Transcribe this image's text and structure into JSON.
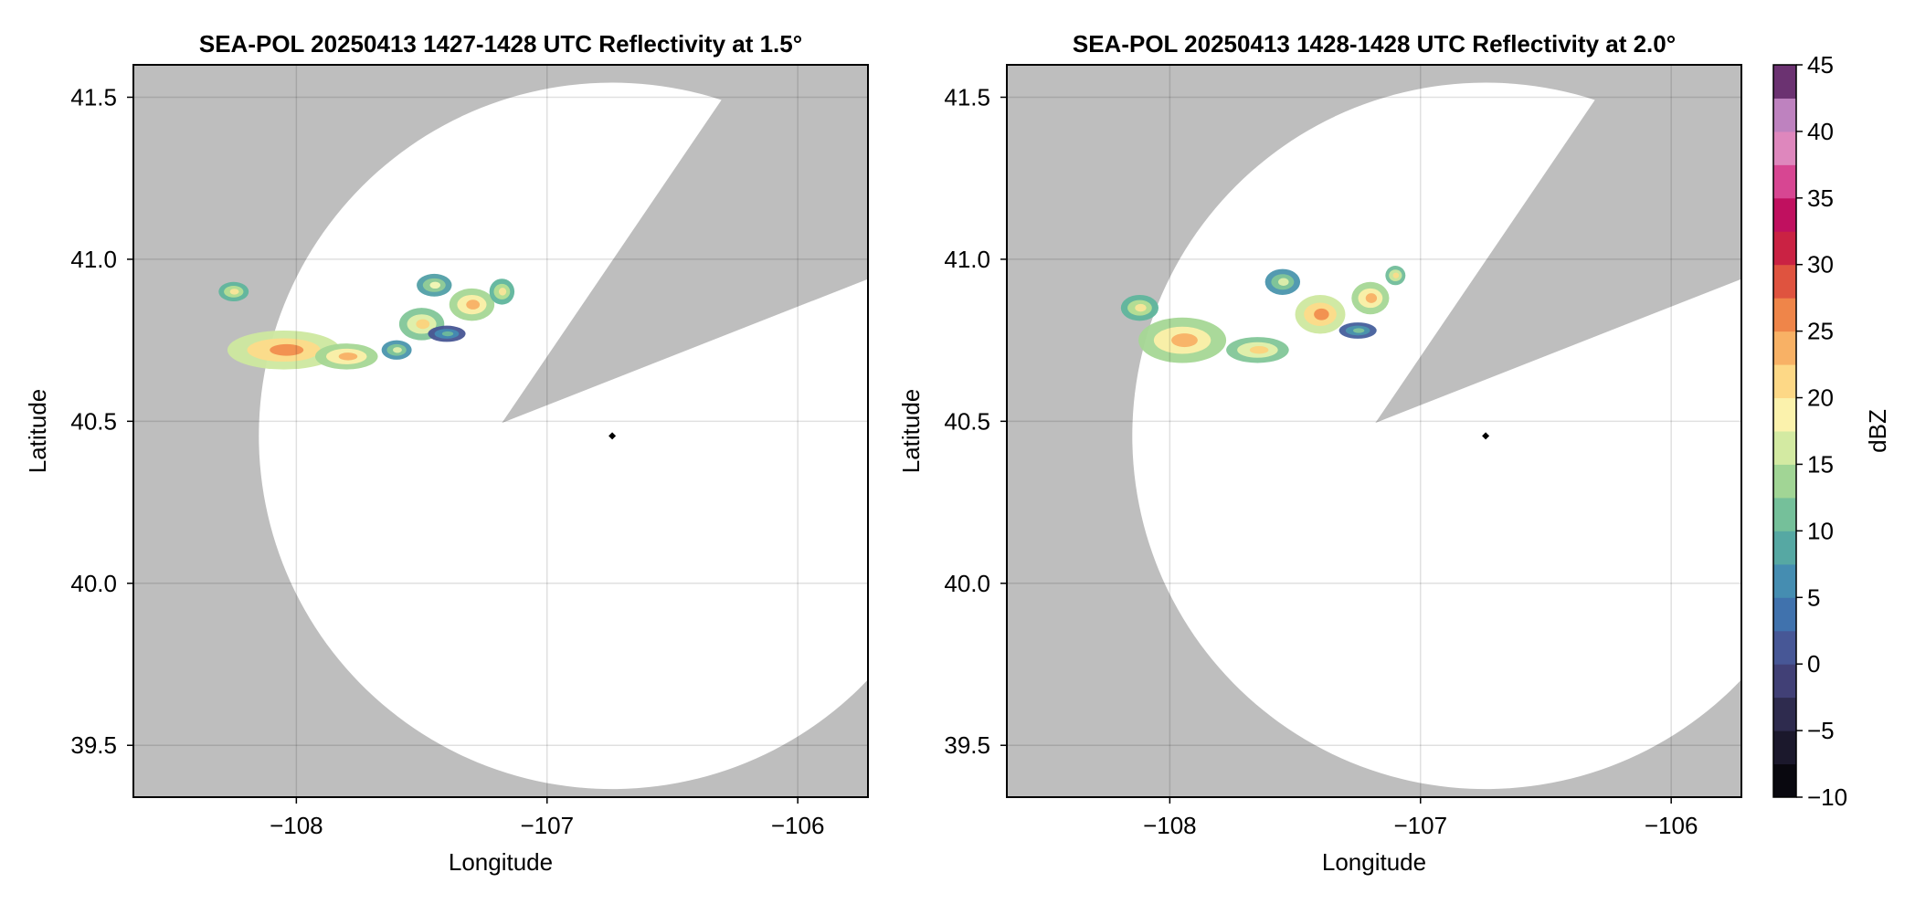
{
  "chart_data": [
    {
      "type": "heatmap",
      "panel": "left",
      "title": "SEA-POL 20250413 1427-1428 UTC Reflectivity at 1.5°",
      "xlabel": "Longitude",
      "ylabel": "Latitude",
      "xlim": [
        -108.65,
        -105.72
      ],
      "ylim": [
        39.34,
        41.6
      ],
      "xticks": [
        -108,
        -107,
        -106
      ],
      "xtick_labels": [
        "−108",
        "−107",
        "−106"
      ],
      "yticks": [
        39.5,
        40.0,
        40.5,
        41.0,
        41.5
      ],
      "ytick_labels": [
        "39.5",
        "40.0",
        "40.5",
        "41.0",
        "41.5"
      ],
      "grid": true,
      "background_color": "#bebebe",
      "radar_site": {
        "lon": -106.74,
        "lat": 40.455
      },
      "coverage": {
        "center_lon": -106.74,
        "center_lat": 40.455,
        "radius_deg_lat": 1.09,
        "blocked_sector_deg": [
          18,
          60
        ]
      },
      "echo_regions": [
        {
          "lon": -108.05,
          "lat": 40.72,
          "w": 0.45,
          "h": 0.12,
          "dbz": 22
        },
        {
          "lon": -107.8,
          "lat": 40.7,
          "w": 0.25,
          "h": 0.08,
          "dbz": 20
        },
        {
          "lon": -108.25,
          "lat": 40.9,
          "w": 0.12,
          "h": 0.06,
          "dbz": 16
        },
        {
          "lon": -107.6,
          "lat": 40.72,
          "w": 0.12,
          "h": 0.06,
          "dbz": 13
        },
        {
          "lon": -107.5,
          "lat": 40.8,
          "w": 0.18,
          "h": 0.1,
          "dbz": 18
        },
        {
          "lon": -107.45,
          "lat": 40.92,
          "w": 0.14,
          "h": 0.07,
          "dbz": 14
        },
        {
          "lon": -107.3,
          "lat": 40.86,
          "w": 0.18,
          "h": 0.1,
          "dbz": 20
        },
        {
          "lon": -107.18,
          "lat": 40.9,
          "w": 0.1,
          "h": 0.08,
          "dbz": 16
        },
        {
          "lon": -107.4,
          "lat": 40.77,
          "w": 0.15,
          "h": 0.05,
          "dbz": 7
        }
      ]
    },
    {
      "type": "heatmap",
      "panel": "right",
      "title": "SEA-POL 20250413 1428-1428 UTC Reflectivity at 2.0°",
      "xlabel": "Longitude",
      "ylabel": "Latitude",
      "xlim": [
        -108.65,
        -105.72
      ],
      "ylim": [
        39.34,
        41.6
      ],
      "xticks": [
        -108,
        -107,
        -106
      ],
      "xtick_labels": [
        "−108",
        "−107",
        "−106"
      ],
      "yticks": [
        39.5,
        40.0,
        40.5,
        41.0,
        41.5
      ],
      "ytick_labels": [
        "39.5",
        "40.0",
        "40.5",
        "41.0",
        "41.5"
      ],
      "grid": true,
      "background_color": "#bebebe",
      "radar_site": {
        "lon": -106.74,
        "lat": 40.455
      },
      "coverage": {
        "center_lon": -106.74,
        "center_lat": 40.455,
        "radius_deg_lat": 1.09,
        "blocked_sector_deg": [
          18,
          60
        ]
      },
      "echo_regions": [
        {
          "lon": -107.95,
          "lat": 40.75,
          "w": 0.35,
          "h": 0.14,
          "dbz": 20
        },
        {
          "lon": -107.65,
          "lat": 40.72,
          "w": 0.25,
          "h": 0.08,
          "dbz": 18
        },
        {
          "lon": -108.12,
          "lat": 40.85,
          "w": 0.15,
          "h": 0.08,
          "dbz": 16
        },
        {
          "lon": -107.55,
          "lat": 40.93,
          "w": 0.14,
          "h": 0.08,
          "dbz": 13
        },
        {
          "lon": -107.4,
          "lat": 40.83,
          "w": 0.2,
          "h": 0.12,
          "dbz": 22
        },
        {
          "lon": -107.2,
          "lat": 40.88,
          "w": 0.15,
          "h": 0.1,
          "dbz": 20
        },
        {
          "lon": -107.1,
          "lat": 40.95,
          "w": 0.08,
          "h": 0.06,
          "dbz": 17
        },
        {
          "lon": -107.25,
          "lat": 40.78,
          "w": 0.15,
          "h": 0.05,
          "dbz": 8
        }
      ]
    }
  ],
  "colorbar": {
    "label": "dBZ",
    "min": -10,
    "max": 45,
    "step": 2.5,
    "ticks": [
      -10,
      -5,
      0,
      5,
      10,
      15,
      20,
      25,
      30,
      35,
      40,
      45
    ],
    "tick_labels": [
      "−10",
      "−5",
      "0",
      "5",
      "10",
      "15",
      "20",
      "25",
      "30",
      "35",
      "40",
      "45"
    ],
    "colormap_stops": [
      {
        "v": -10,
        "color": "#000000"
      },
      {
        "v": -5,
        "color": "#24203a"
      },
      {
        "v": 0,
        "color": "#4a4a8a"
      },
      {
        "v": 5,
        "color": "#3c7fb8"
      },
      {
        "v": 10,
        "color": "#5fb59c"
      },
      {
        "v": 15,
        "color": "#b7df93"
      },
      {
        "v": 18,
        "color": "#fbfab8"
      },
      {
        "v": 22,
        "color": "#fdd07a"
      },
      {
        "v": 26,
        "color": "#f18a4a"
      },
      {
        "v": 30,
        "color": "#d73a3a"
      },
      {
        "v": 33,
        "color": "#b8004f"
      },
      {
        "v": 36,
        "color": "#d6408e"
      },
      {
        "v": 40,
        "color": "#e2a7d3"
      },
      {
        "v": 42,
        "color": "#a96bb3"
      },
      {
        "v": 45,
        "color": "#3e0a42"
      }
    ]
  }
}
